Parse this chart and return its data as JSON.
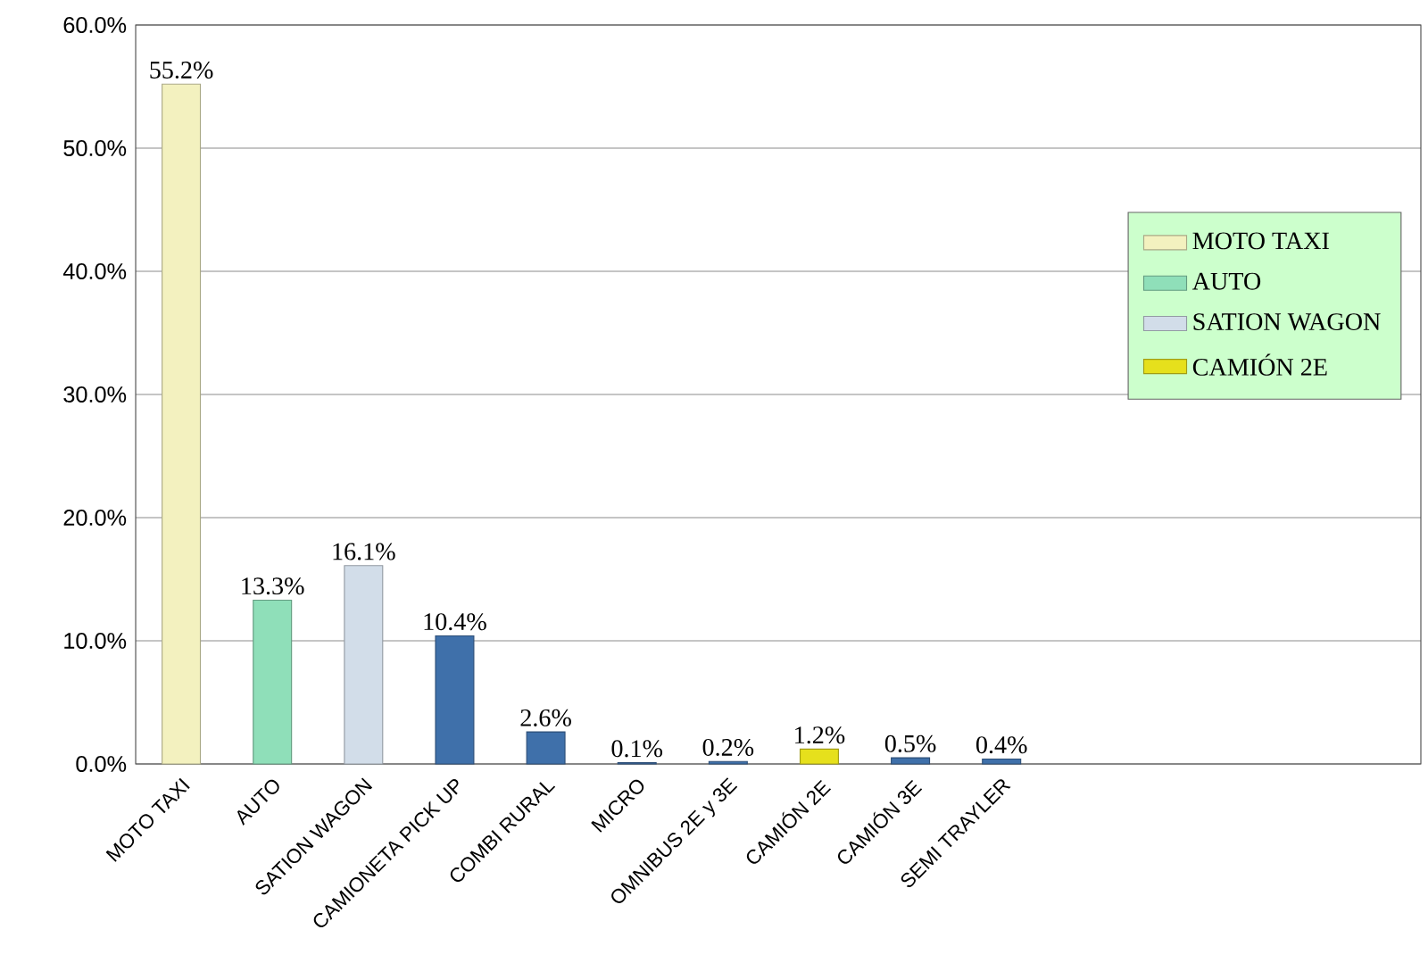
{
  "chart_data": {
    "type": "bar",
    "categories": [
      "MOTO TAXI",
      "AUTO",
      "SATION WAGON",
      "CAMIONETA PICK UP",
      "COMBI RURAL",
      "MICRO",
      "OMNIBUS 2E y 3E",
      "CAMIÓN 2E",
      "CAMIÓN 3E",
      "SEMI TRAYLER"
    ],
    "series": [
      {
        "name": "MOTO TAXI",
        "color": "#f3f1bf",
        "values": [
          55.2,
          null,
          null,
          null,
          null,
          null,
          null,
          null,
          null,
          null
        ],
        "value_labels": [
          "55.2%",
          null,
          null,
          null,
          null,
          null,
          null,
          null,
          null,
          null
        ]
      },
      {
        "name": "AUTO",
        "color": "#8fdfb9",
        "values": [
          null,
          13.3,
          null,
          null,
          null,
          null,
          null,
          null,
          null,
          null
        ],
        "value_labels": [
          null,
          "13.3%",
          null,
          null,
          null,
          null,
          null,
          null,
          null,
          null
        ]
      },
      {
        "name": "SATION WAGON",
        "color": "#d2dde9",
        "values": [
          null,
          null,
          16.1,
          null,
          null,
          null,
          null,
          null,
          null,
          null
        ],
        "value_labels": [
          null,
          null,
          "16.1%",
          null,
          null,
          null,
          null,
          null,
          null,
          null
        ]
      },
      {
        "color": "#3f70aa",
        "values": [
          null,
          null,
          null,
          10.4,
          2.6,
          0.1,
          0.2,
          null,
          0.5,
          0.4
        ],
        "value_labels": [
          null,
          null,
          null,
          "10.4%",
          "2.6%",
          "0.1%",
          "0.2%",
          null,
          "0.5%",
          "0.4%"
        ]
      },
      {
        "name": "CAMIÓN 2E",
        "color": "#e6e01c",
        "values": [
          null,
          null,
          null,
          null,
          null,
          null,
          null,
          1.2,
          null,
          null
        ],
        "value_labels": [
          null,
          null,
          null,
          null,
          null,
          null,
          null,
          "1.2%",
          null,
          null
        ]
      }
    ],
    "ylim": [
      0,
      60
    ],
    "yticks": [
      {
        "value": 0,
        "label": "0.0%"
      },
      {
        "value": 10,
        "label": "10.0%"
      },
      {
        "value": 20,
        "label": "20.0%"
      },
      {
        "value": 30,
        "label": "30.0%"
      },
      {
        "value": 40,
        "label": "40.0%"
      },
      {
        "value": 50,
        "label": "50.0%"
      },
      {
        "value": 60,
        "label": "60.0%"
      }
    ],
    "grid": "y",
    "legend": "right"
  }
}
